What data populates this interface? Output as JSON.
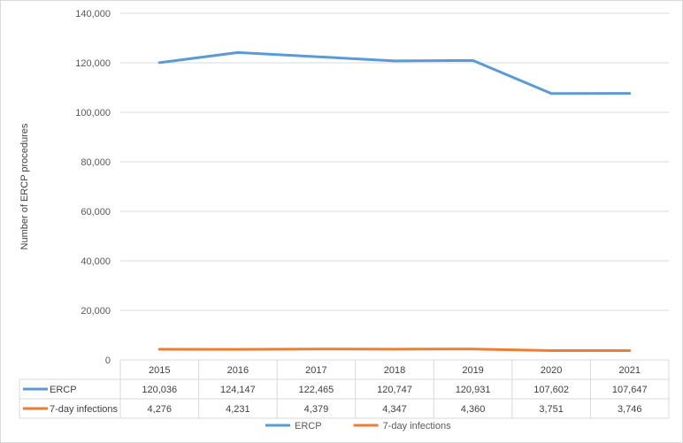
{
  "chart_data": {
    "type": "line",
    "title": "",
    "xlabel": "",
    "ylabel": "Number  of ERCP procedures",
    "ylim": [
      0,
      140000
    ],
    "y_ticks": [
      "0",
      "20,000",
      "40,000",
      "60,000",
      "80,000",
      "100,000",
      "120,000",
      "140,000"
    ],
    "categories": [
      "2015",
      "2016",
      "2017",
      "2018",
      "2019",
      "2020",
      "2021"
    ],
    "grid": true,
    "legend": "bottom",
    "data_table": true,
    "series": [
      {
        "name": "ERCP",
        "color": "#5B9BD5",
        "values": [
          120036,
          124147,
          122465,
          120747,
          120931,
          107602,
          107647
        ],
        "labels": [
          "120,036",
          "124,147",
          "122,465",
          "120,747",
          "120,931",
          "107,602",
          "107,647"
        ]
      },
      {
        "name": "7-day infections",
        "color": "#ED7D31",
        "values": [
          4276,
          4231,
          4379,
          4347,
          4360,
          3751,
          3746
        ],
        "labels": [
          "4,276",
          "4,231",
          "4,379",
          "4,347",
          "4,360",
          "3,751",
          "3,746"
        ]
      }
    ]
  }
}
